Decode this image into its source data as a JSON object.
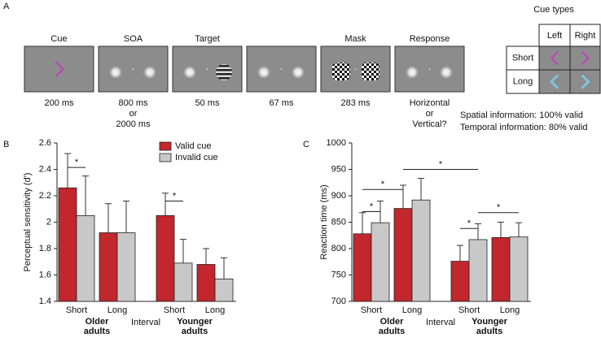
{
  "panel_a": {
    "label": "A",
    "frames": [
      {
        "name": "Cue",
        "duration": [
          "200 ms"
        ]
      },
      {
        "name": "SOA",
        "duration": [
          "800 ms",
          "or",
          "2000 ms"
        ]
      },
      {
        "name": "Target",
        "duration": [
          "50 ms"
        ]
      },
      {
        "duration": [
          "67 ms"
        ]
      },
      {
        "name": "Mask",
        "duration": [
          "283 ms"
        ]
      },
      {
        "name": "Response",
        "duration": [
          "Horizontal",
          "or",
          "Vertical?"
        ]
      }
    ],
    "cue_types": {
      "title": "Cue types",
      "columns": [
        "Left",
        "Right"
      ],
      "rows": [
        "Short",
        "Long"
      ]
    },
    "notes": [
      "Spatial information: 100% valid",
      "Temporal information: 80% valid"
    ]
  },
  "chart_data": [
    {
      "type": "bar",
      "panel": "B",
      "y_label": "Perceptual sensitivity (d')",
      "categories": [
        "Short",
        "Long",
        "Short",
        "Long"
      ],
      "groups": [
        [
          "Older",
          "adults"
        ],
        [
          "Younger",
          "adults"
        ]
      ],
      "x_label": "Interval",
      "series": [
        {
          "name": "Valid cue",
          "color": "#c1272d",
          "values": [
            2.26,
            1.92,
            2.05,
            1.68
          ],
          "errors": [
            0.26,
            0.22,
            0.17,
            0.12
          ]
        },
        {
          "name": "Invalid cue",
          "color": "#c8c8c8",
          "values": [
            2.05,
            1.92,
            1.69,
            1.57
          ],
          "errors": [
            0.3,
            0.24,
            0.18,
            0.16
          ]
        }
      ],
      "ylim": [
        1.4,
        2.6
      ],
      "yticks": [
        1.4,
        1.6,
        1.8,
        2,
        2.2,
        2.4,
        2.6
      ],
      "annotations": [
        {
          "text": "*",
          "y": 2.415
        },
        {
          "text": "*",
          "y": 2.16
        }
      ]
    },
    {
      "type": "bar",
      "panel": "C",
      "y_label": "Reaction time (ms)",
      "categories": [
        "Short",
        "Long",
        "Short",
        "Long"
      ],
      "groups": [
        [
          "Older",
          "adults"
        ],
        [
          "Younger",
          "adults"
        ]
      ],
      "x_label": "Interval",
      "series": [
        {
          "name": "Valid cue",
          "color": "#c1272d",
          "values": [
            828,
            876,
            776,
            821
          ],
          "errors": [
            40,
            44,
            30,
            29
          ]
        },
        {
          "name": "Invalid cue",
          "color": "#c8c8c8",
          "values": [
            849,
            892,
            817,
            822
          ],
          "errors": [
            41,
            41,
            30,
            27
          ]
        }
      ],
      "ylim": [
        700,
        1000
      ],
      "yticks": [
        700,
        750,
        800,
        850,
        900,
        950,
        1000
      ],
      "annotations": [
        {
          "text": "*",
          "y": 870
        },
        {
          "text": "*",
          "y": 912
        },
        {
          "text": "*",
          "y": 950
        },
        {
          "text": "*",
          "y": 838
        },
        {
          "text": "*",
          "y": 868
        }
      ]
    }
  ]
}
